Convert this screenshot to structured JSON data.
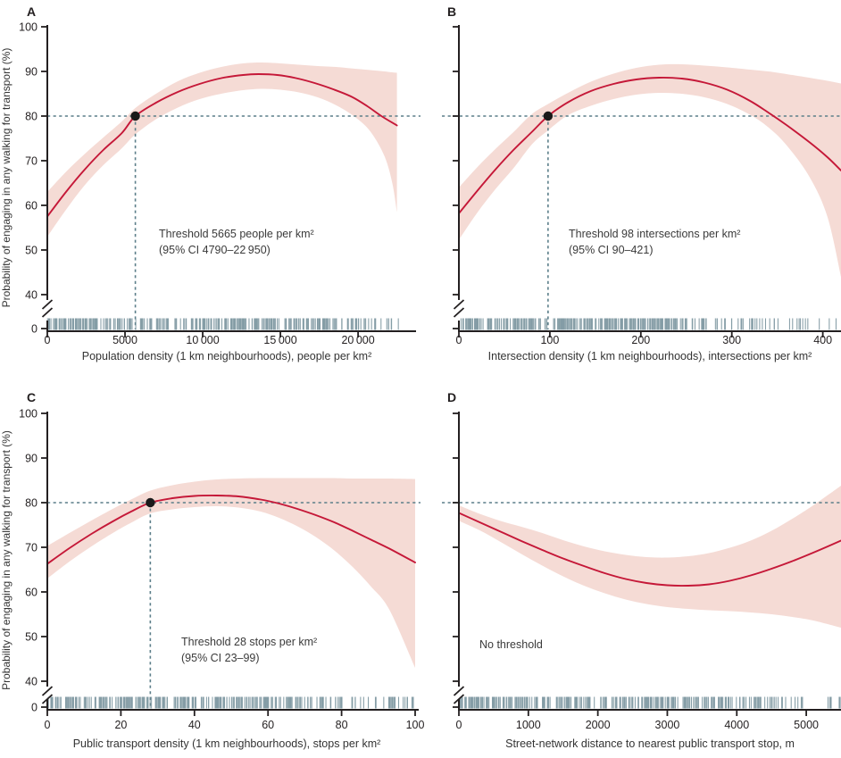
{
  "figure_title": "",
  "colors": {
    "curve": "#c51838",
    "band": "#f5dbd5",
    "dashed": "#5c7f8a",
    "rug": "#6b8893",
    "dot": "#1a1a1a",
    "axis": "#231f20",
    "text": "#333333",
    "annotation": "#3a3a3a",
    "background": "#ffffff"
  },
  "y_axis": {
    "label": "Probability of engaging in any walking for transport (%)",
    "tick_values": [
      100,
      90,
      80,
      70,
      60,
      50,
      40
    ],
    "tick_labels": [
      "100",
      "90",
      "80",
      "70",
      "60",
      "50",
      "40"
    ],
    "zero_label": "0",
    "has_break": true,
    "reference_line": 80
  },
  "chart_data": [
    {
      "type": "line",
      "panel_label": "A",
      "xlabel": "Population density (1 km neighbourhoods), people per km²",
      "ylabel": "Probability of engaging in any walking for transport (%)",
      "xlim": [
        0,
        23500
      ],
      "ylim": [
        40,
        100
      ],
      "x_tick_values": [
        0,
        5000,
        10000,
        15000,
        20000
      ],
      "x_tick_labels": [
        "0",
        "5000",
        "10 000",
        "15 000",
        "20 000"
      ],
      "reference_line_y": 80,
      "threshold": {
        "x": 5665,
        "y": 80,
        "line1": "Threshold 5665 people per km²",
        "line2": "(95% CI 4790–22 950)"
      },
      "curve": [
        [
          0,
          57.5
        ],
        [
          1200,
          63
        ],
        [
          2400,
          68
        ],
        [
          3600,
          72.4
        ],
        [
          4800,
          76.2
        ],
        [
          5665,
          80
        ],
        [
          7000,
          83
        ],
        [
          8400,
          85.4
        ],
        [
          9800,
          87.2
        ],
        [
          11200,
          88.5
        ],
        [
          12600,
          89.2
        ],
        [
          13600,
          89.4
        ],
        [
          14800,
          89.2
        ],
        [
          16000,
          88.5
        ],
        [
          17200,
          87.4
        ],
        [
          18400,
          86
        ],
        [
          19600,
          84.3
        ],
        [
          20600,
          82.2
        ],
        [
          21500,
          80
        ],
        [
          22500,
          77.9
        ]
      ],
      "band": [
        [
          0,
          53,
          63
        ],
        [
          1200,
          59,
          67.5
        ],
        [
          2400,
          64.5,
          71.5
        ],
        [
          3600,
          69,
          75.2
        ],
        [
          4800,
          72.8,
          78.8
        ],
        [
          5665,
          75.9,
          81.8
        ],
        [
          7000,
          79.3,
          85
        ],
        [
          8400,
          81.9,
          87.8
        ],
        [
          9800,
          83.8,
          89.7
        ],
        [
          11200,
          85,
          91
        ],
        [
          12600,
          85.8,
          91.8
        ],
        [
          13800,
          86.1,
          92
        ],
        [
          15000,
          85.9,
          91.8
        ],
        [
          16200,
          85.3,
          91.5
        ],
        [
          17400,
          84.2,
          91.2
        ],
        [
          18600,
          82.4,
          91
        ],
        [
          19800,
          79.8,
          90.6
        ],
        [
          20800,
          76.5,
          90.3
        ],
        [
          21700,
          71,
          90
        ],
        [
          22200,
          65,
          89.8
        ],
        [
          22500,
          58.5,
          89.7
        ]
      ],
      "rug": {
        "count": 330,
        "seed": 11,
        "segments": [
          {
            "to": 0.81,
            "w": 0.86
          },
          {
            "to": 0.9,
            "w": 0.11
          },
          {
            "to": 1,
            "w": 0.03
          }
        ]
      }
    },
    {
      "type": "line",
      "panel_label": "B",
      "xlabel": "Intersection density (1 km neighbourhoods), intersections per km²",
      "ylabel": "",
      "xlim": [
        0,
        420
      ],
      "ylim": [
        40,
        100
      ],
      "x_tick_values": [
        0,
        100,
        200,
        300,
        400
      ],
      "x_tick_labels": [
        "0",
        "100",
        "200",
        "300",
        "400"
      ],
      "reference_line_y": 80,
      "threshold": {
        "x": 98,
        "y": 80,
        "line1": "Threshold 98 intersections per km²",
        "line2": "(95% CI 90–421)"
      },
      "curve": [
        [
          0,
          58.2
        ],
        [
          20,
          63.2
        ],
        [
          40,
          68
        ],
        [
          60,
          72.4
        ],
        [
          80,
          76.4
        ],
        [
          98,
          80
        ],
        [
          120,
          83.1
        ],
        [
          145,
          85.6
        ],
        [
          170,
          87.2
        ],
        [
          195,
          88.2
        ],
        [
          220,
          88.6
        ],
        [
          245,
          88.4
        ],
        [
          270,
          87.5
        ],
        [
          295,
          85.9
        ],
        [
          320,
          83.4
        ],
        [
          340,
          80.8
        ],
        [
          360,
          78
        ],
        [
          385,
          74.2
        ],
        [
          405,
          70.8
        ],
        [
          420,
          67.8
        ]
      ],
      "band": [
        [
          0,
          52.3,
          64
        ],
        [
          20,
          58.3,
          68.5
        ],
        [
          40,
          63.6,
          72.6
        ],
        [
          60,
          68.3,
          76.4
        ],
        [
          80,
          73.6,
          80.4
        ],
        [
          98,
          76.8,
          82.7
        ],
        [
          120,
          80.2,
          85.2
        ],
        [
          145,
          82.3,
          87.7
        ],
        [
          170,
          83.8,
          89.5
        ],
        [
          195,
          84.8,
          90.8
        ],
        [
          220,
          85.2,
          91.5
        ],
        [
          245,
          85,
          91.6
        ],
        [
          270,
          84.2,
          91.3
        ],
        [
          295,
          82.7,
          90.9
        ],
        [
          320,
          80.3,
          90.4
        ],
        [
          340,
          77.5,
          90
        ],
        [
          360,
          73.5,
          89.4
        ],
        [
          385,
          66.5,
          88.6
        ],
        [
          405,
          57.5,
          87.9
        ],
        [
          420,
          44,
          87.3
        ]
      ],
      "rug": {
        "count": 320,
        "seed": 22,
        "segments": [
          {
            "to": 0.62,
            "w": 0.8
          },
          {
            "to": 0.8,
            "w": 0.14
          },
          {
            "to": 1,
            "w": 0.06
          }
        ]
      }
    },
    {
      "type": "line",
      "panel_label": "C",
      "xlabel": "Public transport density (1 km neighbourhoods), stops per km²",
      "ylabel": "Probability of engaging in any walking for transport (%)",
      "xlim": [
        0,
        100
      ],
      "ylim": [
        40,
        100
      ],
      "x_tick_values": [
        0,
        20,
        40,
        60,
        80,
        100
      ],
      "x_tick_labels": [
        "0",
        "20",
        "40",
        "60",
        "80",
        "100"
      ],
      "reference_line_y": 80,
      "threshold": {
        "x": 28,
        "y": 80,
        "line1": "Threshold 28 stops per km²",
        "line2": "(95% CI 23–99)"
      },
      "curve": [
        [
          0,
          66.3
        ],
        [
          6,
          69.8
        ],
        [
          12,
          73
        ],
        [
          18,
          75.9
        ],
        [
          23,
          78.1
        ],
        [
          28,
          80
        ],
        [
          34,
          81
        ],
        [
          40,
          81.5
        ],
        [
          46,
          81.6
        ],
        [
          52,
          81.4
        ],
        [
          58,
          80.7
        ],
        [
          63,
          79.8
        ],
        [
          68,
          78.6
        ],
        [
          73,
          77.2
        ],
        [
          78,
          75.6
        ],
        [
          83,
          73.7
        ],
        [
          88,
          71.7
        ],
        [
          93,
          69.7
        ],
        [
          100,
          66.6
        ]
      ],
      "band": [
        [
          0,
          63,
          70.3
        ],
        [
          6,
          66.8,
          73.2
        ],
        [
          12,
          70.2,
          76
        ],
        [
          18,
          73.3,
          78.7
        ],
        [
          23,
          75.6,
          80.8
        ],
        [
          28,
          77.6,
          82.7
        ],
        [
          34,
          78.5,
          83.9
        ],
        [
          40,
          79,
          84.7
        ],
        [
          46,
          79.2,
          85.2
        ],
        [
          52,
          78.9,
          85.4
        ],
        [
          58,
          78,
          85.5
        ],
        [
          63,
          76.6,
          85.5
        ],
        [
          68,
          74.7,
          85.5
        ],
        [
          73,
          72.3,
          85.5
        ],
        [
          78,
          69.3,
          85.5
        ],
        [
          83,
          65.6,
          85.4
        ],
        [
          88,
          61.2,
          85.4
        ],
        [
          93,
          56,
          85.4
        ],
        [
          100,
          43,
          85.3
        ]
      ],
      "rug": {
        "count": 320,
        "seed": 33,
        "segments": [
          {
            "to": 0.62,
            "w": 0.8
          },
          {
            "to": 0.8,
            "w": 0.13
          },
          {
            "to": 1,
            "w": 0.07
          }
        ]
      }
    },
    {
      "type": "line",
      "panel_label": "D",
      "xlabel": "Street-network distance to nearest public transport stop, m",
      "ylabel": "",
      "xlim": [
        0,
        5500
      ],
      "ylim": [
        40,
        100
      ],
      "x_tick_values": [
        0,
        1000,
        2000,
        3000,
        4000,
        5000
      ],
      "x_tick_labels": [
        "0",
        "1000",
        "2000",
        "3000",
        "4000",
        "5000"
      ],
      "reference_line_y": 80,
      "threshold": null,
      "no_threshold_text": "No threshold",
      "curve": [
        [
          0,
          77.7
        ],
        [
          300,
          75.6
        ],
        [
          600,
          73.5
        ],
        [
          900,
          71.4
        ],
        [
          1200,
          69.4
        ],
        [
          1500,
          67.5
        ],
        [
          1800,
          65.8
        ],
        [
          2100,
          64.2
        ],
        [
          2400,
          62.9
        ],
        [
          2700,
          62
        ],
        [
          3000,
          61.5
        ],
        [
          3300,
          61.4
        ],
        [
          3600,
          61.7
        ],
        [
          3900,
          62.5
        ],
        [
          4200,
          63.7
        ],
        [
          4500,
          65.2
        ],
        [
          4800,
          66.9
        ],
        [
          5100,
          68.8
        ],
        [
          5500,
          71.5
        ]
      ],
      "band": [
        [
          0,
          75.9,
          79.4
        ],
        [
          300,
          73.8,
          77.5
        ],
        [
          600,
          71.2,
          75.9
        ],
        [
          900,
          68.5,
          74.6
        ],
        [
          1200,
          65.9,
          73.2
        ],
        [
          1500,
          63.5,
          71.6
        ],
        [
          1800,
          61.4,
          70.2
        ],
        [
          2100,
          59.7,
          69.1
        ],
        [
          2400,
          58.3,
          68.3
        ],
        [
          2700,
          57.3,
          67.8
        ],
        [
          3000,
          56.6,
          67.7
        ],
        [
          3300,
          56.2,
          68
        ],
        [
          3600,
          55.9,
          68.7
        ],
        [
          3900,
          55.7,
          69.9
        ],
        [
          4200,
          55.4,
          71.5
        ],
        [
          4500,
          55,
          73.7
        ],
        [
          4800,
          54.4,
          76.4
        ],
        [
          5100,
          53.6,
          79.4
        ],
        [
          5500,
          52,
          83.8
        ]
      ],
      "rug": {
        "count": 330,
        "seed": 44,
        "segments": [
          {
            "to": 0.62,
            "w": 0.78
          },
          {
            "to": 0.82,
            "w": 0.16
          },
          {
            "to": 1,
            "w": 0.06
          }
        ]
      }
    }
  ]
}
